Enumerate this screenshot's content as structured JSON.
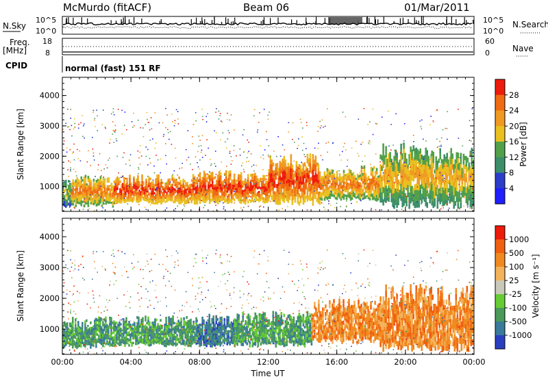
{
  "header": {
    "station": "McMurdo (fitACF)",
    "beam": "Beam 06",
    "date": "01/Mar/2011"
  },
  "strip": {
    "nsky_label": "N.Sky",
    "nsearch_label": "N.Search",
    "freq_label_1": "Freq.",
    "freq_label_2": "[MHz]",
    "nave_label": "Nave",
    "cpid_label": "CPID",
    "cpid_value": "normal (fast) 151 RF",
    "noise_ticks_left": [
      "10^5",
      "10^0"
    ],
    "noise_ticks_right": [
      "10^5",
      "10^0"
    ],
    "freq_ticks_left": [
      "18",
      "8"
    ],
    "freq_ticks_right": [
      "60",
      "0"
    ]
  },
  "chart_data": [
    {
      "type": "heatmap",
      "panel": "power",
      "ylabel": "Slant Range [km]",
      "xlabel": "",
      "x_ticks": [
        "00:00",
        "04:00",
        "08:00",
        "12:00",
        "16:00",
        "20:00",
        "00:00"
      ],
      "x_range_hours": [
        0,
        24
      ],
      "ylim": [
        180,
        4600
      ],
      "y_ticks": [
        1000,
        2000,
        3000,
        4000
      ],
      "colorbar": {
        "label": "Power [dB]",
        "ticks": [
          "4",
          "8",
          "12",
          "16",
          "20",
          "24",
          "28"
        ],
        "colors": [
          "#1f1fff",
          "#2c3ec9",
          "#3d8f6a",
          "#52a04a",
          "#e9c020",
          "#f09a22",
          "#f06a12",
          "#ee1c0c"
        ]
      },
      "echo_bands": [
        {
          "hours": [
            0.0,
            0.5
          ],
          "range_km": [
            250,
            1350
          ],
          "level": 4
        },
        {
          "hours": [
            0.5,
            3.0
          ],
          "range_km": [
            300,
            1400
          ],
          "level": 6
        },
        {
          "hours": [
            3.0,
            7.5
          ],
          "range_km": [
            400,
            1400
          ],
          "level": 7
        },
        {
          "hours": [
            7.5,
            12.0
          ],
          "range_km": [
            400,
            1550
          ],
          "level": 7
        },
        {
          "hours": [
            12.0,
            15.0
          ],
          "range_km": [
            350,
            2100
          ],
          "level": 7
        },
        {
          "hours": [
            15.0,
            18.5
          ],
          "range_km": [
            500,
            1700
          ],
          "level": 6
        },
        {
          "hours": [
            18.5,
            21.5
          ],
          "range_km": [
            250,
            2500
          ],
          "level": 5
        },
        {
          "hours": [
            21.5,
            24.0
          ],
          "range_km": [
            250,
            2300
          ],
          "level": 5
        }
      ]
    },
    {
      "type": "heatmap",
      "panel": "velocity",
      "ylabel": "Slant Range [km]",
      "xlabel": "Time UT",
      "x_ticks": [
        "00:00",
        "04:00",
        "08:00",
        "12:00",
        "16:00",
        "20:00",
        "00:00"
      ],
      "x_range_hours": [
        0,
        24
      ],
      "ylim": [
        180,
        4600
      ],
      "y_ticks": [
        1000,
        2000,
        3000,
        4000
      ],
      "colorbar": {
        "label": "Velocity [m s⁻¹]",
        "ticks": [
          "1000",
          "500",
          "100",
          "25",
          "-25",
          "-100",
          "-500",
          "-1000"
        ],
        "colors": [
          "#2a3fbf",
          "#3a7a9a",
          "#4a9a5a",
          "#66cc33",
          "#c9c9b9",
          "#f4b25a",
          "#f08a20",
          "#f06010",
          "#ee1a0a"
        ]
      },
      "echo_bands": [
        {
          "hours": [
            0.0,
            2.0
          ],
          "range_km": [
            350,
            1400
          ],
          "level": 2
        },
        {
          "hours": [
            2.0,
            7.8
          ],
          "range_km": [
            400,
            1450
          ],
          "level": 2
        },
        {
          "hours": [
            7.8,
            10.0
          ],
          "range_km": [
            400,
            1500
          ],
          "level": 1
        },
        {
          "hours": [
            10.0,
            14.5
          ],
          "range_km": [
            400,
            1600
          ],
          "level": 2
        },
        {
          "hours": [
            14.5,
            18.5
          ],
          "range_km": [
            500,
            2000
          ],
          "level": 6
        },
        {
          "hours": [
            18.5,
            24.0
          ],
          "range_km": [
            250,
            2500
          ],
          "level": 6
        }
      ]
    }
  ]
}
